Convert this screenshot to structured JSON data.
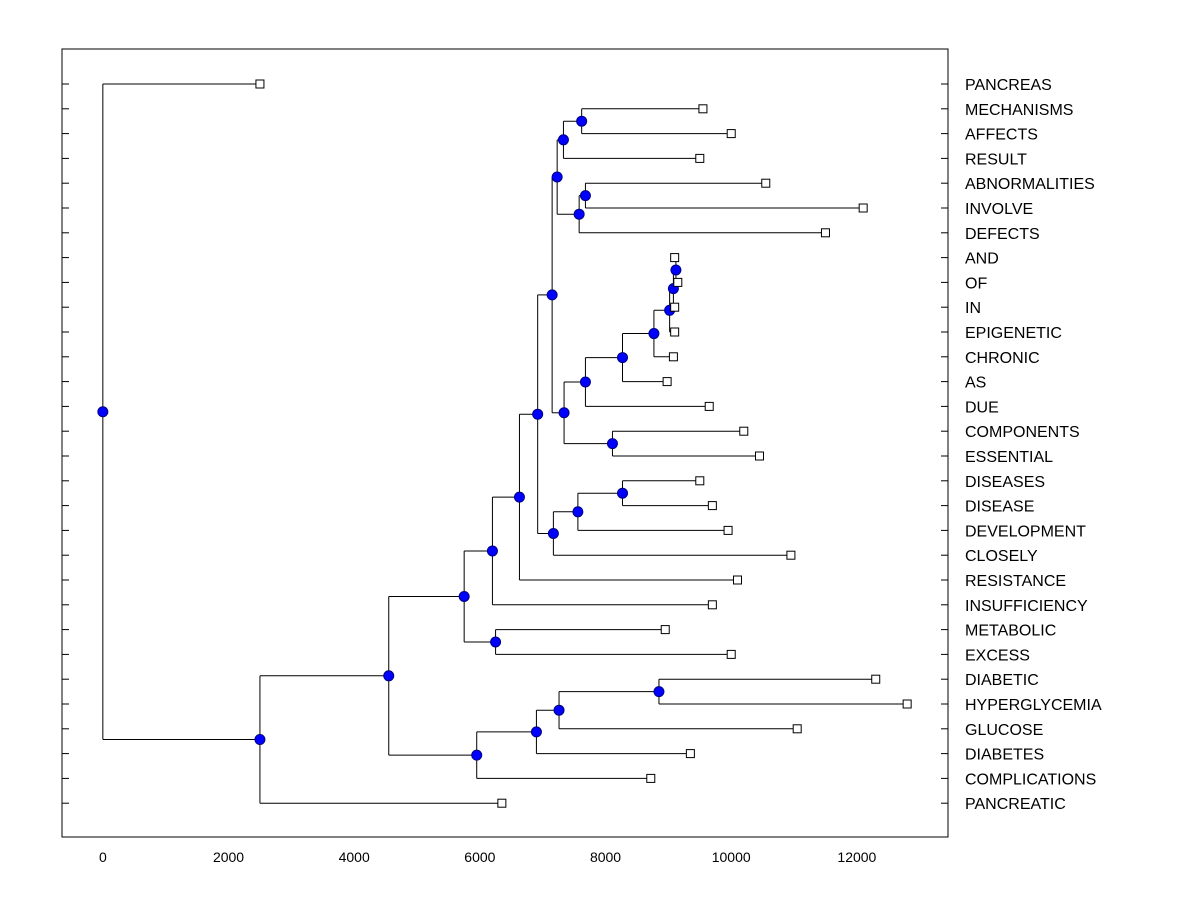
{
  "chart_data": {
    "type": "dendrogram",
    "title": "",
    "xlabel": "",
    "ylabel": "",
    "xlim": [
      -650,
      13450
    ],
    "x_ticks": [
      0,
      2000,
      4000,
      6000,
      8000,
      10000,
      12000
    ],
    "x_tick_labels": [
      "0",
      "2000",
      "4000",
      "6000",
      "8000",
      "10000",
      "12000"
    ],
    "leaf_order": [
      "PANCREAS",
      "MECHANISMS",
      "AFFECTS",
      "RESULT",
      "ABNORMALITIES",
      "INVOLVE",
      "DEFECTS",
      "AND",
      "OF",
      "IN",
      "EPIGENETIC",
      "CHRONIC",
      "AS",
      "DUE",
      "COMPONENTS",
      "ESSENTIAL",
      "DISEASES",
      "DISEASE",
      "DEVELOPMENT",
      "CLOSELY",
      "RESISTANCE",
      "INSUFFICIENCY",
      "METABOLIC",
      "EXCESS",
      "DIABETIC",
      "HYPERGLYCEMIA",
      "GLUCOSE",
      "DIABETES",
      "COMPLICATIONS",
      "PANCREATIC"
    ],
    "leaf_x": [
      2500,
      9550,
      10000,
      9500,
      10550,
      12100,
      11500,
      9100,
      9150,
      9100,
      9100,
      9080,
      8980,
      9650,
      10200,
      10450,
      9500,
      9700,
      9950,
      10950,
      10100,
      9700,
      8950,
      10000,
      12300,
      12800,
      11050,
      9350,
      8720,
      6350
    ],
    "nodes": [
      {
        "id": "n1",
        "x": 7620,
        "children": [
          "MECHANISMS",
          "AFFECTS"
        ]
      },
      {
        "id": "n2",
        "x": 7330,
        "children": [
          "n1",
          "RESULT"
        ]
      },
      {
        "id": "n3",
        "x": 7680,
        "children": [
          "ABNORMALITIES",
          "INVOLVE"
        ]
      },
      {
        "id": "n4",
        "x": 7580,
        "children": [
          "n3",
          "DEFECTS"
        ]
      },
      {
        "id": "n5",
        "x": 7230,
        "children": [
          "n2",
          "n4"
        ]
      },
      {
        "id": "n6",
        "x": 9120,
        "children": [
          "AND",
          "OF"
        ]
      },
      {
        "id": "n7",
        "x": 9080,
        "children": [
          "n6",
          "IN"
        ]
      },
      {
        "id": "n8",
        "x": 9020,
        "children": [
          "n7",
          "EPIGENETIC"
        ]
      },
      {
        "id": "n9",
        "x": 8770,
        "children": [
          "n8",
          "CHRONIC"
        ]
      },
      {
        "id": "n10",
        "x": 8270,
        "children": [
          "n9",
          "AS"
        ]
      },
      {
        "id": "n11",
        "x": 7680,
        "children": [
          "n10",
          "DUE"
        ]
      },
      {
        "id": "n12",
        "x": 8110,
        "children": [
          "COMPONENTS",
          "ESSENTIAL"
        ]
      },
      {
        "id": "n13",
        "x": 7340,
        "children": [
          "n11",
          "n12"
        ]
      },
      {
        "id": "n14",
        "x": 7150,
        "children": [
          "n5",
          "n13"
        ]
      },
      {
        "id": "n15",
        "x": 8270,
        "children": [
          "DISEASES",
          "DISEASE"
        ]
      },
      {
        "id": "n16",
        "x": 7560,
        "children": [
          "n15",
          "DEVELOPMENT"
        ]
      },
      {
        "id": "n17",
        "x": 7170,
        "children": [
          "n16",
          "CLOSELY"
        ]
      },
      {
        "id": "n18",
        "x": 6920,
        "children": [
          "n14",
          "n17"
        ]
      },
      {
        "id": "n19",
        "x": 6630,
        "children": [
          "n18",
          "RESISTANCE"
        ]
      },
      {
        "id": "n20",
        "x": 6200,
        "children": [
          "n19",
          "INSUFFICIENCY"
        ]
      },
      {
        "id": "n21",
        "x": 6250,
        "children": [
          "METABOLIC",
          "EXCESS"
        ]
      },
      {
        "id": "n22",
        "x": 5750,
        "children": [
          "n20",
          "n21"
        ]
      },
      {
        "id": "n23",
        "x": 8850,
        "children": [
          "DIABETIC",
          "HYPERGLYCEMIA"
        ]
      },
      {
        "id": "n24",
        "x": 7260,
        "children": [
          "n23",
          "GLUCOSE"
        ]
      },
      {
        "id": "n25",
        "x": 6900,
        "children": [
          "n24",
          "DIABETES"
        ]
      },
      {
        "id": "n26",
        "x": 5950,
        "children": [
          "n25",
          "COMPLICATIONS"
        ]
      },
      {
        "id": "n27",
        "x": 4550,
        "children": [
          "n22",
          "n26"
        ]
      },
      {
        "id": "n28",
        "x": 2500,
        "children": [
          "n27",
          "PANCREATIC"
        ]
      },
      {
        "id": "n29",
        "x": 0,
        "children": [
          "PANCREAS",
          "n28"
        ]
      }
    ],
    "colors": {
      "node_fill": "#0000ff",
      "node_stroke": "#000080",
      "leaf_fill": "#ffffff",
      "line": "#000000"
    }
  }
}
